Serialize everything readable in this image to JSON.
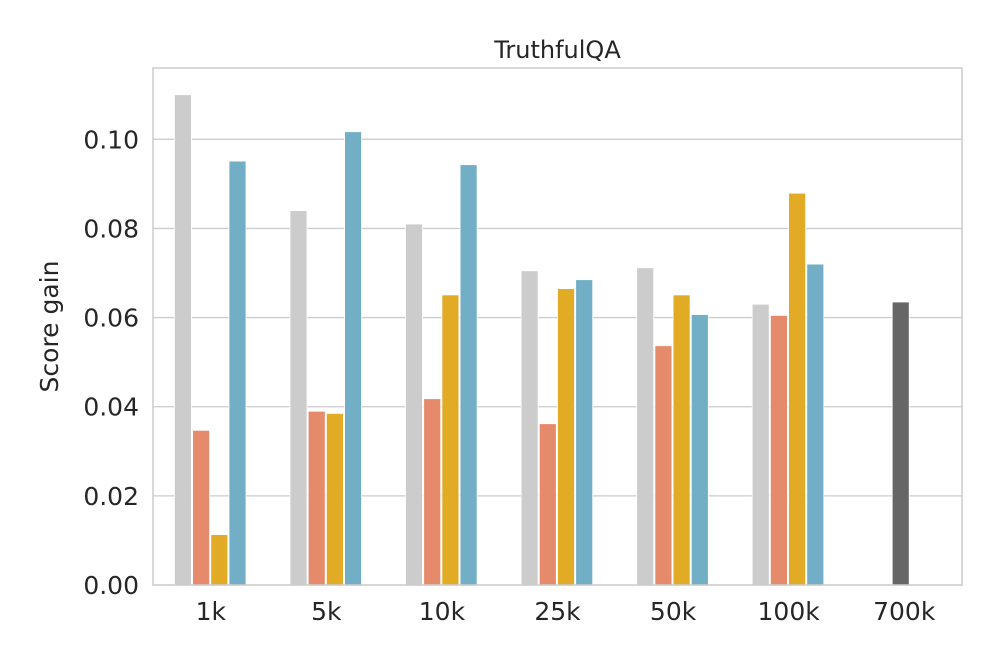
{
  "chart_data": {
    "type": "bar",
    "title": "TruthfulQA",
    "xlabel": "",
    "ylabel": "Score gain",
    "ylim": [
      0,
      0.116
    ],
    "yticks": [
      "0.00",
      "0.02",
      "0.04",
      "0.06",
      "0.08",
      "0.10"
    ],
    "ytick_values": [
      0,
      0.02,
      0.04,
      0.06,
      0.08,
      0.1
    ],
    "categories": [
      "1k",
      "5k",
      "10k",
      "25k",
      "50k",
      "100k",
      "700k"
    ],
    "grid": true,
    "legend": "none",
    "series": [
      {
        "color": "#cccccc",
        "values": [
          0.11,
          0.084,
          0.081,
          0.0705,
          0.0712,
          0.063,
          null
        ]
      },
      {
        "color": "#e58b6b",
        "values": [
          0.0347,
          0.039,
          0.0418,
          0.0362,
          0.0537,
          0.0605,
          null
        ]
      },
      {
        "color": "#e2ab25",
        "values": [
          0.0113,
          0.0385,
          0.0651,
          0.0665,
          0.0651,
          0.0879,
          null
        ]
      },
      {
        "color": "#72aec5",
        "values": [
          0.0951,
          0.1017,
          0.0943,
          0.0685,
          0.0607,
          0.072,
          null
        ]
      },
      {
        "color": "#666666",
        "values": [
          null,
          null,
          null,
          null,
          null,
          null,
          0.0635
        ]
      }
    ]
  }
}
